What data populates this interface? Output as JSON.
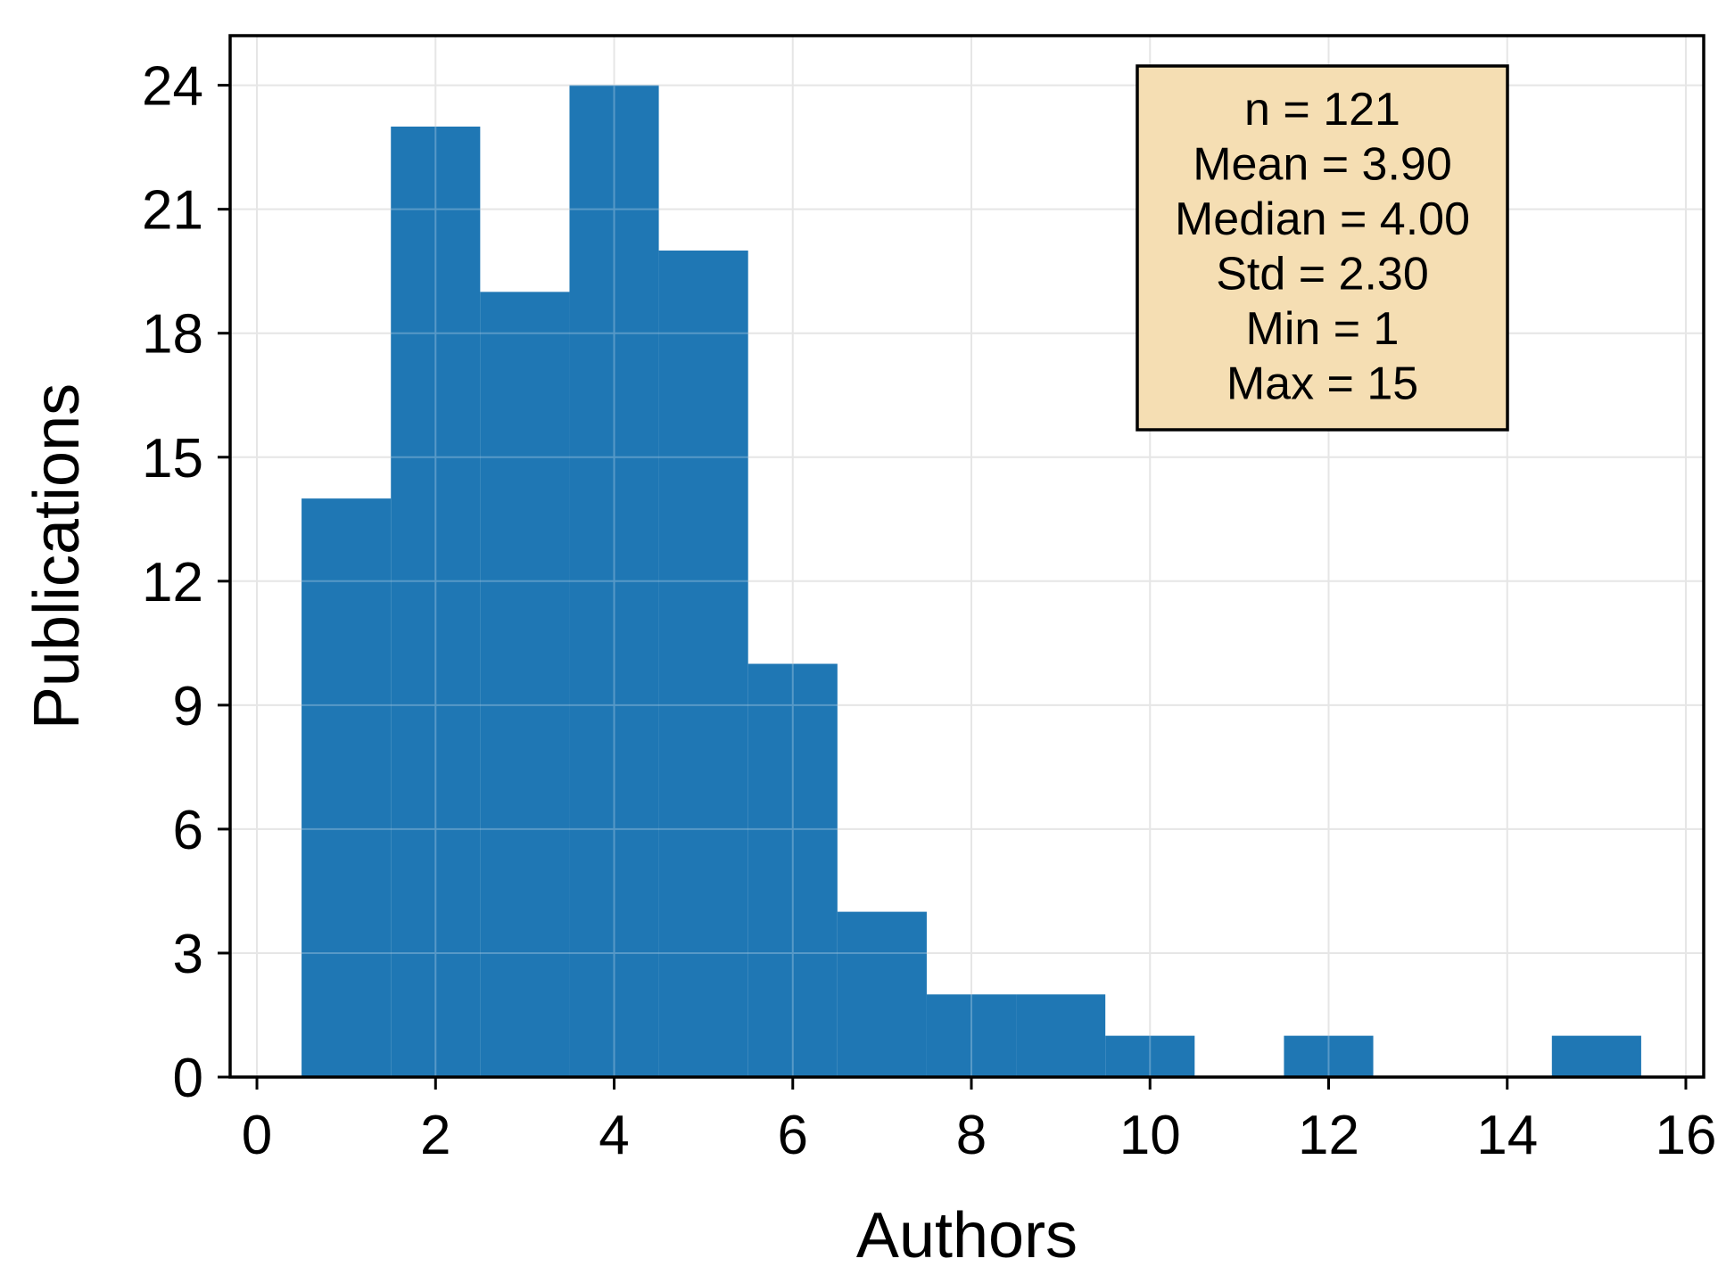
{
  "chart_data": {
    "type": "bar",
    "xlabel": "Authors",
    "ylabel": "Publications",
    "xlim": [
      -0.3,
      16.2
    ],
    "ylim": [
      0,
      25.2
    ],
    "x_ticks": [
      0,
      2,
      4,
      6,
      8,
      10,
      12,
      14,
      16
    ],
    "y_ticks": [
      0,
      3,
      6,
      9,
      12,
      15,
      18,
      21,
      24
    ],
    "grid": true,
    "bar_color": "#1f77b4",
    "bins": [
      {
        "center": 1,
        "count": 14
      },
      {
        "center": 2,
        "count": 23
      },
      {
        "center": 3,
        "count": 19
      },
      {
        "center": 4,
        "count": 24
      },
      {
        "center": 5,
        "count": 20
      },
      {
        "center": 6,
        "count": 10
      },
      {
        "center": 7,
        "count": 4
      },
      {
        "center": 8,
        "count": 2
      },
      {
        "center": 9,
        "count": 2
      },
      {
        "center": 10,
        "count": 1
      },
      {
        "center": 11,
        "count": 0
      },
      {
        "center": 12,
        "count": 1
      },
      {
        "center": 13,
        "count": 0
      },
      {
        "center": 14,
        "count": 0
      },
      {
        "center": 15,
        "count": 1
      }
    ],
    "bin_width": 1,
    "stats_box": {
      "placement": "top-right",
      "background": "#f5deb3",
      "lines": [
        "n = 121",
        "Mean = 3.90",
        "Median = 4.00",
        "Std = 2.30",
        "Min = 1",
        "Max = 15"
      ]
    }
  }
}
